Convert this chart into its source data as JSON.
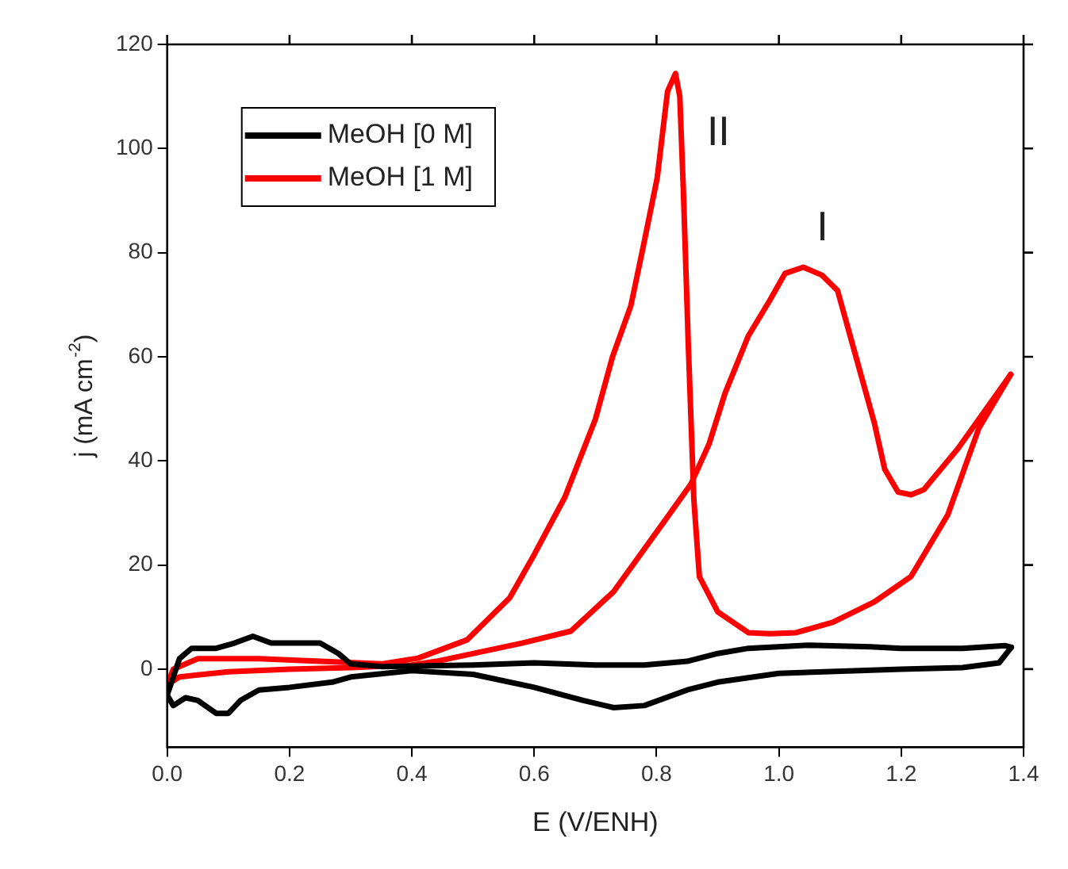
{
  "chart_data": {
    "type": "line",
    "xlabel": "E (V/ENH)",
    "ylabel": "j (mA cm$^{-2}$)",
    "xlim": [
      0,
      1.4
    ],
    "xticks": [
      {
        "value": 0,
        "label": "0.0"
      },
      0.2,
      0.4,
      0.6,
      0.8,
      {
        "value": 1,
        "label": "1.0"
      },
      1.2,
      1.4
    ],
    "ylim": [
      -15,
      120
    ],
    "yticks": [
      0,
      20,
      40,
      60,
      80,
      100,
      120
    ],
    "grid": false,
    "legend": "top left",
    "marker": "none",
    "line_style": "solid",
    "annotations": [
      {
        "text": "II",
        "x": 0.831,
        "y": 114.4
      },
      {
        "text": "I",
        "x": 1.04,
        "y": 77.2
      }
    ],
    "series": [
      {
        "name": "MeOH [0 M]",
        "color": "#000000",
        "x": [
          0,
          0.02,
          0.04,
          0.08,
          0.11,
          0.14,
          0.17,
          0.2,
          0.25,
          0.28,
          0.3,
          0.35,
          0.5,
          0.6,
          0.7,
          0.78,
          0.85,
          0.9,
          0.95,
          1.05,
          1.15,
          1.2,
          1.3,
          1.37,
          1.38
        ],
        "values": [
          -5,
          2,
          4,
          4,
          5,
          6.3,
          5,
          5,
          5,
          3,
          1,
          0.5,
          0.8,
          1.2,
          0.8,
          0.8,
          1.5,
          3,
          4,
          4.6,
          4.3,
          4,
          4,
          4.5,
          4.2
        ]
      },
      {
        "color": "#000000",
        "x": [
          1.38,
          1.36,
          1.3,
          1.2,
          1,
          0.9,
          0.85,
          0.78,
          0.73,
          0.68,
          0.6,
          0.5,
          0.4,
          0.3,
          0.27,
          0.2,
          0.15,
          0.12,
          0.1,
          0.08,
          0.05,
          0.03,
          0.01,
          0
        ],
        "values": [
          4.2,
          1.2,
          0.3,
          0,
          -0.8,
          -2.5,
          -4,
          -7,
          -7.4,
          -6,
          -3.5,
          -1,
          -0.3,
          -1.5,
          -2.5,
          -3.5,
          -4,
          -6,
          -8.5,
          -8.5,
          -6,
          -5.5,
          -7,
          -5
        ]
      },
      {
        "name": "MeOH [1 M]",
        "color": "#ff0000",
        "x": [
          0,
          0.02,
          0.1,
          0.2,
          0.3,
          0.4,
          0.44,
          0.58,
          0.66,
          0.73,
          0.814,
          0.856,
          0.886,
          0.912,
          0.95,
          0.985,
          1.01,
          1.04,
          1.07,
          1.096,
          1.126,
          1.156,
          1.173,
          1.195,
          1.216,
          1.237,
          1.293,
          1.379
        ],
        "values": [
          -3,
          -1.5,
          -0.5,
          0,
          0.3,
          0.8,
          1.5,
          5,
          7.3,
          14.9,
          28.6,
          35.5,
          43.3,
          53,
          64,
          70.8,
          76,
          77.2,
          75.7,
          72.7,
          60,
          47.3,
          38.4,
          34,
          33.5,
          34.5,
          42.4,
          56.6
        ]
      },
      {
        "color": "#ff0000",
        "x": [
          1.379,
          1.327,
          1.276,
          1.216,
          1.156,
          1.088,
          1.028,
          0.985,
          0.95,
          0.9,
          0.87,
          0.861,
          0.852,
          0.844,
          0.838,
          0.831,
          0.818,
          0.801,
          0.779,
          0.758,
          0.728,
          0.7,
          0.65,
          0.6,
          0.56,
          0.49,
          0.41,
          0.35,
          0.25,
          0.15,
          0.05,
          0.01,
          0
        ],
        "values": [
          56.6,
          46.3,
          29.6,
          17.8,
          12.9,
          9,
          7,
          6.8,
          7,
          11,
          17.8,
          32.5,
          62,
          91.4,
          110,
          114.4,
          111,
          94.3,
          81.6,
          69.8,
          60,
          48,
          33,
          22,
          13.7,
          5.6,
          2.1,
          1,
          1.5,
          2,
          2,
          0,
          -3
        ]
      }
    ]
  }
}
